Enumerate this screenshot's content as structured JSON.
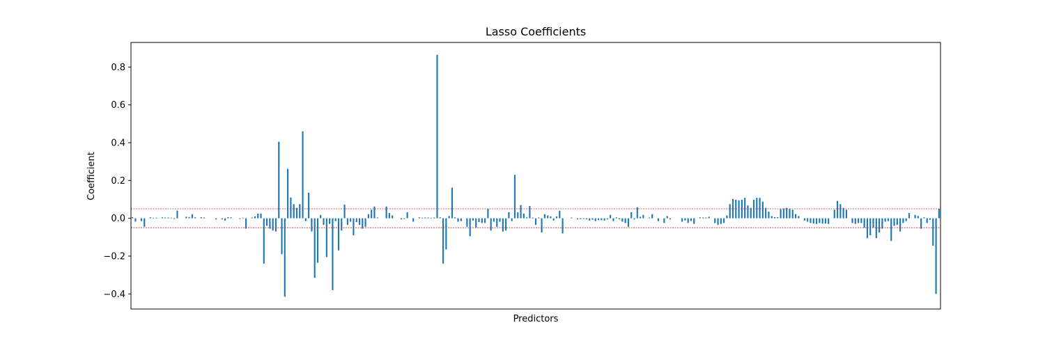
{
  "chart_data": {
    "type": "bar",
    "title": "Lasso Coefficients",
    "xlabel": "Predictors",
    "ylabel": "Coefficient",
    "ylim": [
      -0.48,
      0.93
    ],
    "yticks": [
      -0.4,
      -0.2,
      0.0,
      0.2,
      0.4,
      0.6,
      0.8
    ],
    "ytick_labels": [
      "−0.4",
      "−0.2",
      "0.0",
      "0.2",
      "0.4",
      "0.6",
      "0.8"
    ],
    "threshold_lines": [
      0.05,
      -0.05
    ],
    "bar_color": "#1f77b4",
    "threshold_color": "#d62728",
    "grid": false,
    "xticks_visible": false,
    "values": [
      0.006,
      -0.018,
      0.0,
      -0.015,
      -0.045,
      0.0,
      0.005,
      0.003,
      0.003,
      0.0,
      0.005,
      0.004,
      0.004,
      0.003,
      -0.004,
      0.04,
      0.0,
      0.0,
      0.008,
      0.007,
      0.022,
      0.005,
      0.0,
      0.006,
      0.004,
      0.0,
      0.0,
      0.0,
      -0.006,
      0.0,
      -0.006,
      -0.012,
      0.006,
      0.005,
      0.0,
      0.0,
      -0.004,
      0.003,
      -0.055,
      0.0,
      0.004,
      0.01,
      0.025,
      0.025,
      -0.24,
      -0.04,
      -0.055,
      -0.065,
      -0.07,
      0.405,
      -0.19,
      -0.415,
      0.262,
      0.11,
      0.075,
      0.055,
      0.075,
      0.46,
      -0.015,
      0.135,
      -0.07,
      -0.315,
      -0.235,
      0.018,
      -0.035,
      -0.205,
      -0.03,
      -0.38,
      -0.015,
      -0.17,
      -0.065,
      0.072,
      -0.035,
      -0.018,
      -0.09,
      -0.02,
      -0.035,
      -0.055,
      -0.045,
      0.022,
      0.045,
      0.062,
      0.004,
      0.0,
      0.0,
      0.062,
      0.028,
      0.015,
      0.0,
      0.0,
      -0.006,
      -0.004,
      0.032,
      0.0,
      -0.018,
      0.0,
      0.005,
      0.003,
      0.004,
      0.004,
      0.003,
      0.004,
      0.865,
      0.005,
      -0.24,
      -0.165,
      0.012,
      0.162,
      0.005,
      -0.018,
      -0.015,
      0.0,
      -0.045,
      -0.095,
      -0.012,
      -0.05,
      -0.02,
      -0.025,
      -0.025,
      0.05,
      -0.065,
      -0.018,
      -0.045,
      -0.018,
      -0.07,
      -0.065,
      0.032,
      -0.015,
      0.23,
      0.032,
      0.07,
      0.025,
      0.005,
      0.065,
      0.004,
      -0.035,
      0.004,
      -0.075,
      0.022,
      0.015,
      0.01,
      -0.012,
      0.01,
      0.04,
      -0.08,
      0.0,
      0.0,
      0.004,
      0.0,
      -0.006,
      -0.005,
      -0.004,
      -0.006,
      -0.012,
      -0.008,
      -0.015,
      -0.01,
      -0.01,
      -0.012,
      -0.006,
      0.018,
      -0.015,
      0.005,
      -0.005,
      -0.018,
      -0.025,
      -0.045,
      0.032,
      -0.006,
      0.058,
      0.008,
      0.018,
      0.0,
      0.004,
      0.022,
      0.0,
      -0.015,
      0.0,
      -0.025,
      0.012,
      -0.006,
      0.0,
      0.0,
      0.0,
      -0.018,
      -0.012,
      -0.025,
      -0.015,
      -0.03,
      0.0,
      0.005,
      0.004,
      0.004,
      0.008,
      0.0,
      -0.025,
      -0.035,
      -0.03,
      -0.025,
      0.015,
      0.075,
      0.102,
      0.098,
      0.095,
      0.098,
      0.108,
      0.068,
      0.055,
      0.098,
      0.108,
      0.108,
      0.088,
      0.055,
      0.035,
      0.012,
      0.006,
      0.006,
      0.048,
      0.052,
      0.055,
      0.05,
      0.045,
      0.022,
      0.012,
      0.0,
      -0.012,
      -0.018,
      -0.025,
      -0.028,
      -0.03,
      -0.025,
      -0.028,
      -0.028,
      -0.03,
      0.0,
      0.045,
      0.092,
      0.075,
      0.055,
      0.045,
      0.0,
      -0.025,
      -0.03,
      -0.025,
      -0.025,
      -0.05,
      -0.105,
      -0.09,
      -0.05,
      -0.105,
      -0.075,
      -0.055,
      -0.018,
      -0.015,
      -0.12,
      -0.04,
      -0.035,
      -0.07,
      -0.025,
      -0.015,
      0.028,
      0.0,
      0.018,
      0.012,
      -0.055,
      0.005,
      -0.025,
      -0.008,
      -0.145,
      -0.4,
      0.05
    ]
  }
}
